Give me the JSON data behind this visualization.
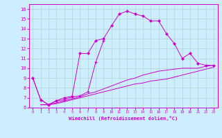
{
  "xlabel": "Windchill (Refroidissement éolien,°C)",
  "background_color": "#cceeff",
  "grid_color": "#aacccc",
  "line_color": "#cc00cc",
  "xlim": [
    -0.5,
    23.5
  ],
  "ylim": [
    6,
    16.5
  ],
  "xticks": [
    0,
    1,
    2,
    3,
    4,
    5,
    6,
    7,
    8,
    9,
    10,
    11,
    12,
    13,
    14,
    15,
    16,
    17,
    18,
    19,
    20,
    21,
    22,
    23
  ],
  "yticks": [
    6,
    7,
    8,
    9,
    10,
    11,
    12,
    13,
    14,
    15,
    16
  ],
  "line_main_x": [
    0,
    1,
    2,
    3,
    4,
    5,
    6,
    7,
    8,
    9,
    10,
    11,
    12,
    13,
    14,
    15,
    16,
    17,
    18,
    19,
    20,
    21,
    22,
    23
  ],
  "line_main_y": [
    9.0,
    6.8,
    6.3,
    6.7,
    7.0,
    7.15,
    11.5,
    11.5,
    12.8,
    13.0,
    14.3,
    15.5,
    15.8,
    15.5,
    15.3,
    14.8,
    14.8,
    13.5,
    12.5,
    11.0,
    11.5,
    10.5,
    10.3,
    10.3
  ],
  "line_short_x": [
    0,
    1,
    2,
    3,
    4,
    5,
    6,
    7,
    8,
    9
  ],
  "line_short_y": [
    9.0,
    6.8,
    6.3,
    6.7,
    6.8,
    7.1,
    7.2,
    7.6,
    10.6,
    12.8
  ],
  "line3_x": [
    1,
    2,
    3,
    4,
    5,
    6,
    7,
    8,
    9,
    10,
    11,
    12,
    13,
    14,
    15,
    16,
    17,
    18,
    19,
    20,
    21,
    22,
    23
  ],
  "line3_y": [
    6.3,
    6.3,
    6.5,
    6.7,
    6.9,
    7.1,
    7.4,
    7.6,
    7.9,
    8.2,
    8.5,
    8.8,
    9.0,
    9.3,
    9.5,
    9.7,
    9.8,
    9.9,
    10.0,
    10.0,
    10.0,
    10.2,
    10.3
  ],
  "line4_x": [
    1,
    2,
    3,
    4,
    5,
    6,
    7,
    8,
    9,
    10,
    11,
    12,
    13,
    14,
    15,
    16,
    17,
    18,
    19,
    20,
    21,
    22,
    23
  ],
  "line4_y": [
    6.3,
    6.3,
    6.4,
    6.6,
    6.8,
    7.0,
    7.2,
    7.4,
    7.6,
    7.8,
    8.0,
    8.2,
    8.4,
    8.5,
    8.7,
    8.8,
    8.9,
    9.1,
    9.3,
    9.5,
    9.7,
    9.9,
    10.1
  ]
}
